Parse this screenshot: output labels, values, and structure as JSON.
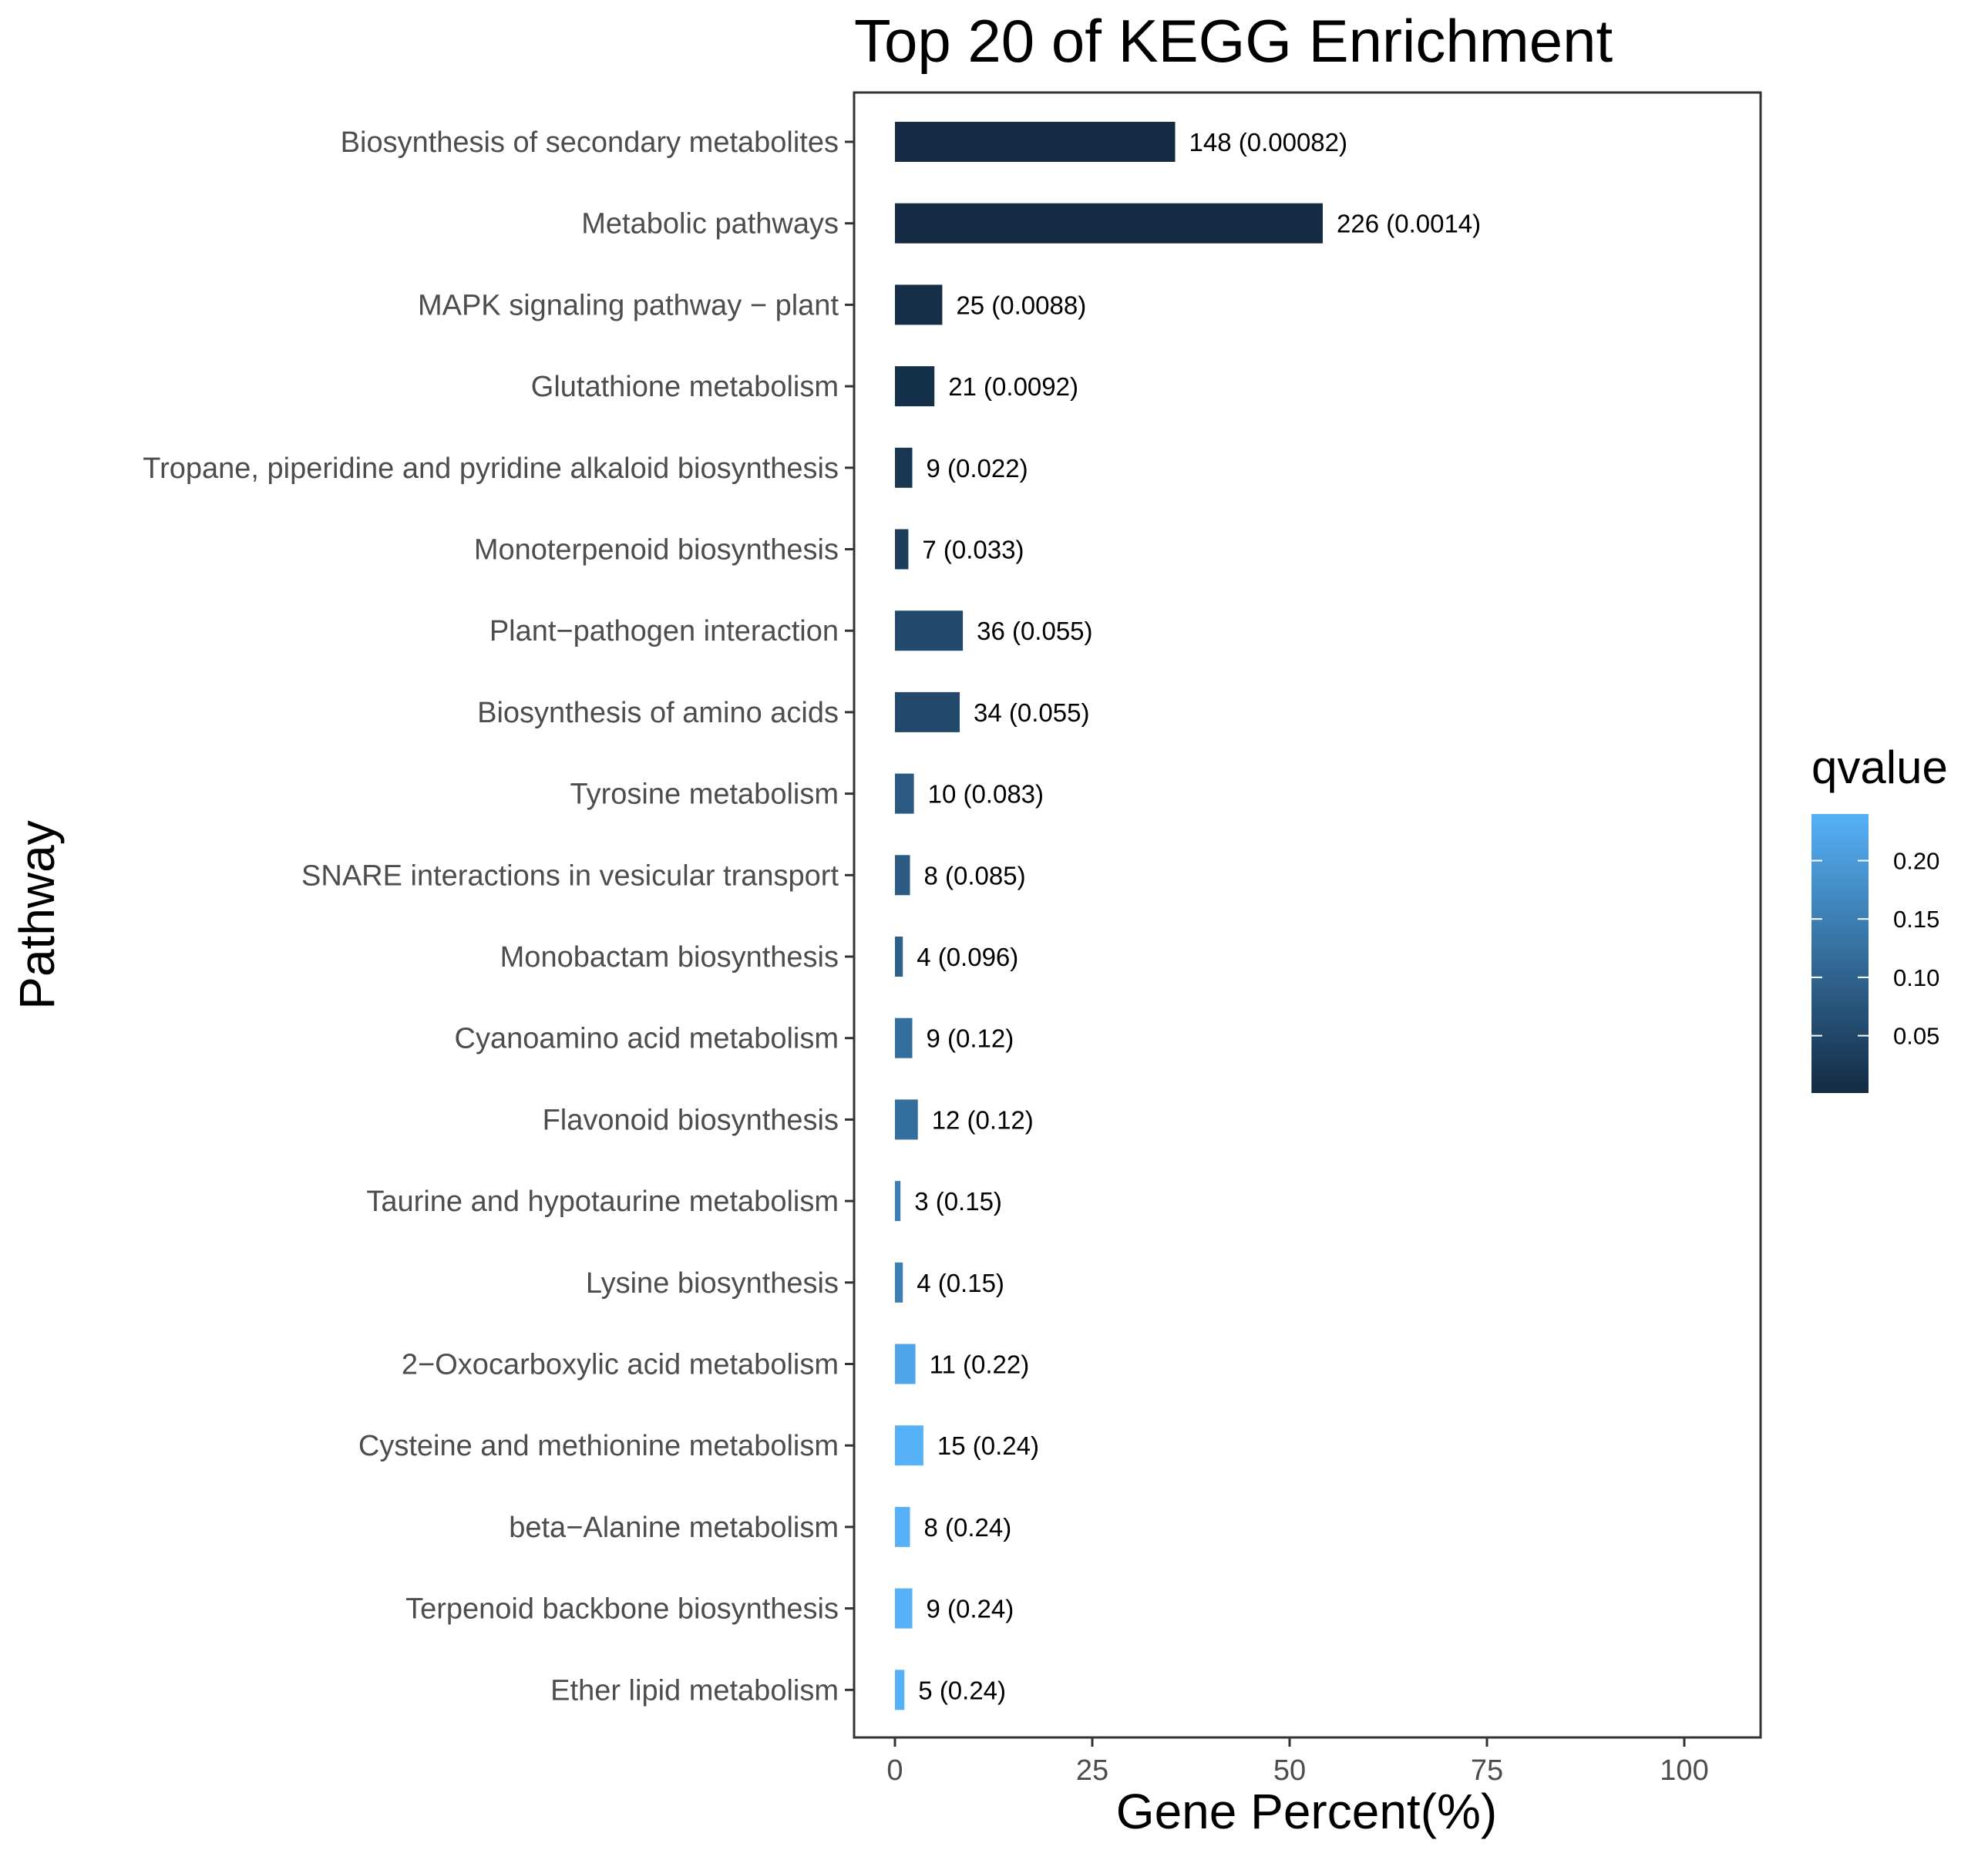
{
  "chart_data": {
    "type": "bar",
    "orientation": "horizontal",
    "title": "Top 20 of KEGG Enrichment",
    "xlabel": "Gene Percent(%)",
    "ylabel": "Pathway",
    "xlim": [
      -5.5,
      109
    ],
    "xticks": [
      0,
      25,
      50,
      75,
      100
    ],
    "grid": false,
    "legend": {
      "title": "qvalue",
      "placement": "right",
      "range": [
        0.00082,
        0.24
      ],
      "ticks": [
        "0.05",
        "0.10",
        "0.15",
        "0.20"
      ],
      "tick_values": [
        0.05,
        0.1,
        0.15,
        0.2
      ],
      "color_low": "#132B43",
      "color_high": "#56B1F7"
    },
    "categories": [
      "Biosynthesis of secondary metabolites",
      "Metabolic pathways",
      "MAPK signaling pathway − plant",
      "Glutathione metabolism",
      "Tropane, piperidine and pyridine alkaloid biosynthesis",
      "Monoterpenoid biosynthesis",
      "Plant−pathogen interaction",
      "Biosynthesis of amino acids",
      "Tyrosine metabolism",
      "SNARE interactions in vesicular transport",
      "Monobactam biosynthesis",
      "Cyanoamino acid metabolism",
      "Flavonoid biosynthesis",
      "Taurine and hypotaurine metabolism",
      "Lysine biosynthesis",
      "2−Oxocarboxylic acid metabolism",
      "Cysteine and methionine metabolism",
      "beta−Alanine metabolism",
      "Terpenoid backbone biosynthesis",
      "Ether lipid metabolism"
    ],
    "values": [
      35.5,
      54.2,
      6.0,
      5.0,
      2.2,
      1.7,
      8.6,
      8.2,
      2.4,
      1.9,
      1.0,
      2.2,
      2.9,
      0.7,
      1.0,
      2.6,
      3.6,
      1.9,
      2.2,
      1.2
    ],
    "qvalues": [
      0.00082,
      0.0014,
      0.0088,
      0.0092,
      0.022,
      0.033,
      0.055,
      0.055,
      0.083,
      0.085,
      0.096,
      0.12,
      0.12,
      0.15,
      0.15,
      0.22,
      0.24,
      0.24,
      0.24,
      0.24
    ],
    "labels": [
      "148 (0.00082)",
      "226 (0.0014)",
      "25 (0.0088)",
      "21 (0.0092)",
      "9 (0.022)",
      "7 (0.033)",
      "36 (0.055)",
      "34 (0.055)",
      "10 (0.083)",
      "8 (0.085)",
      "4 (0.096)",
      "9 (0.12)",
      "12 (0.12)",
      "3 (0.15)",
      "4 (0.15)",
      "11 (0.22)",
      "15 (0.24)",
      "8 (0.24)",
      "9 (0.24)",
      "5 (0.24)"
    ]
  }
}
